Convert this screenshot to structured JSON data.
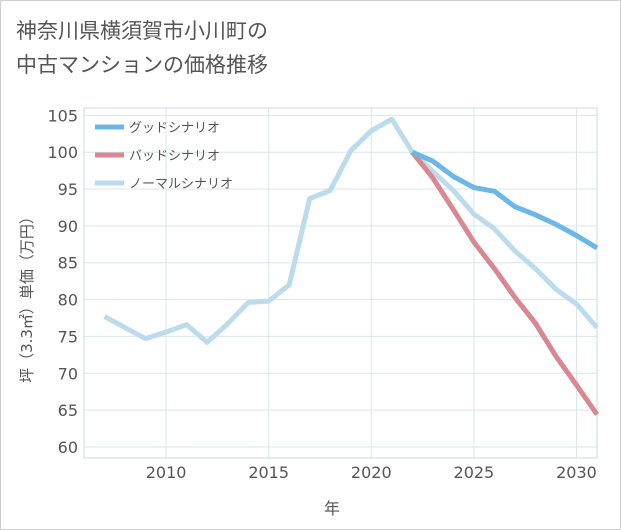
{
  "title_line1": "神奈川県横須賀市小川町の",
  "title_line2": "中古マンションの価格推移",
  "colors": {
    "good": "#6bb8e8",
    "bad": "#d98891",
    "normal": "#bcdcee",
    "grid": "#d9e6ee",
    "text": "#555555"
  },
  "chart_data": {
    "type": "line",
    "xlabel": "年",
    "ylabel": "坪（3.3㎡）単価（万円）",
    "xlim": [
      2006,
      2031
    ],
    "ylim": [
      58.5,
      106
    ],
    "xticks": [
      2010,
      2015,
      2020,
      2025,
      2030
    ],
    "yticks": [
      60,
      65,
      70,
      75,
      80,
      85,
      90,
      95,
      100,
      105
    ],
    "legend_position": "top-left",
    "series": [
      {
        "name": "グッドシナリオ",
        "color": "#6bb8e8",
        "x": [
          2022,
          2023,
          2024,
          2025,
          2026,
          2027,
          2028,
          2029,
          2030,
          2031
        ],
        "y": [
          100.0,
          98.8,
          96.7,
          95.2,
          94.7,
          92.6,
          91.5,
          90.2,
          88.7,
          87.0
        ]
      },
      {
        "name": "バッドシナリオ",
        "color": "#d98891",
        "x": [
          2022,
          2023,
          2024,
          2025,
          2026,
          2027,
          2028,
          2029,
          2030,
          2031
        ],
        "y": [
          100.0,
          96.5,
          92.2,
          87.8,
          84.2,
          80.3,
          76.8,
          72.3,
          68.4,
          64.4
        ]
      },
      {
        "name": "ノーマルシナリオ",
        "color": "#bcdcee",
        "x": [
          2007,
          2008,
          2009,
          2010,
          2011,
          2012,
          2013,
          2014,
          2015,
          2016,
          2017,
          2018,
          2019,
          2020,
          2021,
          2022,
          2023,
          2024,
          2025,
          2026,
          2027,
          2028,
          2029,
          2030,
          2031
        ],
        "y": [
          77.7,
          76.2,
          74.7,
          75.6,
          76.6,
          74.2,
          76.7,
          79.6,
          79.8,
          82.0,
          93.7,
          94.8,
          100.2,
          102.9,
          104.5,
          100.0,
          97.4,
          94.8,
          91.6,
          89.6,
          86.6,
          84.2,
          81.4,
          79.4,
          76.2
        ]
      }
    ]
  }
}
